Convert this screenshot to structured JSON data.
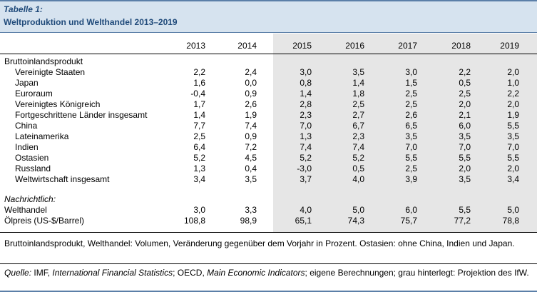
{
  "title": {
    "label": "Tabelle 1:",
    "text": "Weltproduktion und Welthandel 2013–2019"
  },
  "years": [
    "2013",
    "2014",
    "2015",
    "2016",
    "2017",
    "2018",
    "2019"
  ],
  "rows": [
    {
      "label": "Bruttoinlandsprodukt",
      "values": []
    },
    {
      "label": "Vereinigte Staaten",
      "values": [
        "2,2",
        "2,4",
        "3,0",
        "3,5",
        "3,0",
        "2,2",
        "2,0"
      ]
    },
    {
      "label": "Japan",
      "values": [
        "1,6",
        "0,0",
        "0,8",
        "1,4",
        "1,5",
        "0,5",
        "1,0"
      ]
    },
    {
      "label": "Euroraum",
      "values": [
        "-0,4",
        "0,9",
        "1,4",
        "1,8",
        "2,5",
        "2,5",
        "2,2"
      ]
    },
    {
      "label": "Vereinigtes Königreich",
      "values": [
        "1,7",
        "2,6",
        "2,8",
        "2,5",
        "2,5",
        "2,0",
        "2,0"
      ]
    },
    {
      "label": "Fortgeschrittene Länder insgesamt",
      "values": [
        "1,4",
        "1,9",
        "2,3",
        "2,7",
        "2,6",
        "2,1",
        "1,9"
      ]
    },
    {
      "label": "China",
      "values": [
        "7,7",
        "7,4",
        "7,0",
        "6,7",
        "6,5",
        "6,0",
        "5,5"
      ]
    },
    {
      "label": "Lateinamerika",
      "values": [
        "2,5",
        "0,9",
        "1,3",
        "2,3",
        "3,5",
        "3,5",
        "3,5"
      ]
    },
    {
      "label": "Indien",
      "values": [
        "6,4",
        "7,2",
        "7,4",
        "7,4",
        "7,0",
        "7,0",
        "7,0"
      ]
    },
    {
      "label": "Ostasien",
      "values": [
        "5,2",
        "4,5",
        "5,2",
        "5,2",
        "5,5",
        "5,5",
        "5,5"
      ]
    },
    {
      "label": "Russland",
      "values": [
        "1,3",
        "0,4",
        "-3,0",
        "0,5",
        "2,5",
        "2,0",
        "2,0"
      ]
    },
    {
      "label": "Weltwirtschaft insgesamt",
      "values": [
        "3,4",
        "3,5",
        "3,7",
        "4,0",
        "3,9",
        "3,5",
        "3,4"
      ]
    },
    {
      "label": "Nachrichtlich:",
      "values": []
    },
    {
      "label": "Welthandel",
      "values": [
        "3,0",
        "3,3",
        "4,0",
        "5,0",
        "6,0",
        "5,5",
        "5,0"
      ]
    },
    {
      "label": "Ölpreis (US-$/Barrel)",
      "values": [
        "108,8",
        "98,9",
        "65,1",
        "74,3",
        "75,7",
        "77,2",
        "78,8"
      ]
    }
  ],
  "note": "Bruttoinlandsprodukt, Welthandel: Volumen, Veränderung gegenüber dem Vorjahr in Prozent. Ostasien: ohne China, Indien und Japan.",
  "source": {
    "prefix": "Quelle:",
    "p1": " IMF, ",
    "pub1": "International Financial Statistics",
    "p2": "; OECD, ",
    "pub2": "Main Economic Indicators",
    "p3": "; eigene Berechnungen; grau hinterlegt: Projektion des IfW."
  },
  "colors": {
    "title": "#1f4a7a",
    "header_bg": "#d6e3ef",
    "projection_shade": "#e6e6e6",
    "rule_blue": "#5b7fa8"
  }
}
